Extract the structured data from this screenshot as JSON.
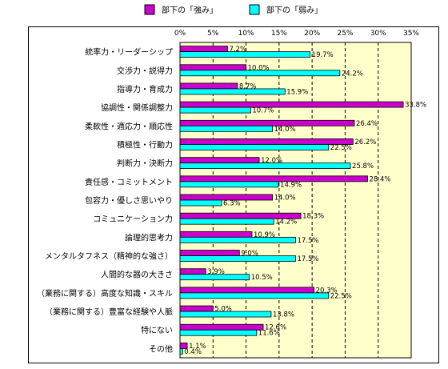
{
  "chart_data": {
    "type": "bar",
    "orientation": "horizontal",
    "categories": [
      "統率力・リーダーシップ",
      "交渉力・説得力",
      "指導力・育成力",
      "協調性・関係調整力",
      "柔軟性・適応力・順応性",
      "積極性・行動力",
      "判断力・決断力",
      "責任感・コミットメント",
      "包容力・優しさ思いやり",
      "コミュニケーション力",
      "論理的思考力",
      "メンタルタフネス（精神的な強さ）",
      "人間的な器の大きさ",
      "（業務に関する）高度な知識・スキル",
      "（業務に関する）豊富な経験や人脈",
      "特にない",
      "その他"
    ],
    "series": [
      {
        "name": "部下の「強み」",
        "color": "#cc00cc",
        "values": [
          7.2,
          10.0,
          8.7,
          33.8,
          26.4,
          26.2,
          12.0,
          28.4,
          14.0,
          18.3,
          10.9,
          9.0,
          3.9,
          20.3,
          5.0,
          12.6,
          1.1
        ],
        "labels": [
          "7.2%",
          "10.0%",
          "8.7%",
          "33.8%",
          "26.4%",
          "26.2%",
          "12.0%",
          "28.4%",
          "14.0%",
          "18.3%",
          "10.9%",
          "9.0%",
          "3.9%",
          "20.3%",
          "5.0%",
          "12.6%",
          "1.1%"
        ]
      },
      {
        "name": "部下の「弱み」",
        "color": "#00ffff",
        "values": [
          19.7,
          24.2,
          15.9,
          10.7,
          14.0,
          22.5,
          25.8,
          14.9,
          6.3,
          14.2,
          17.5,
          17.5,
          10.5,
          22.5,
          13.8,
          11.6,
          0.4
        ],
        "labels": [
          "19.7%",
          "24.2%",
          "15.9%",
          "10.7%",
          "14.0%",
          "22.5%",
          "25.8%",
          "14.9%",
          "6.3%",
          "14.2%",
          "17.5%",
          "17.5%",
          "10.5%",
          "22.5%",
          "13.8%",
          "11.6%",
          "0.4%"
        ]
      }
    ],
    "x_ticks": [
      "0%",
      "5%",
      "10%",
      "15%",
      "20%",
      "25%",
      "30%",
      "35%"
    ],
    "xlim": [
      0,
      35
    ],
    "grid": "vertical dashed",
    "legend_position": "top",
    "plot_background": "#ffffcc"
  }
}
